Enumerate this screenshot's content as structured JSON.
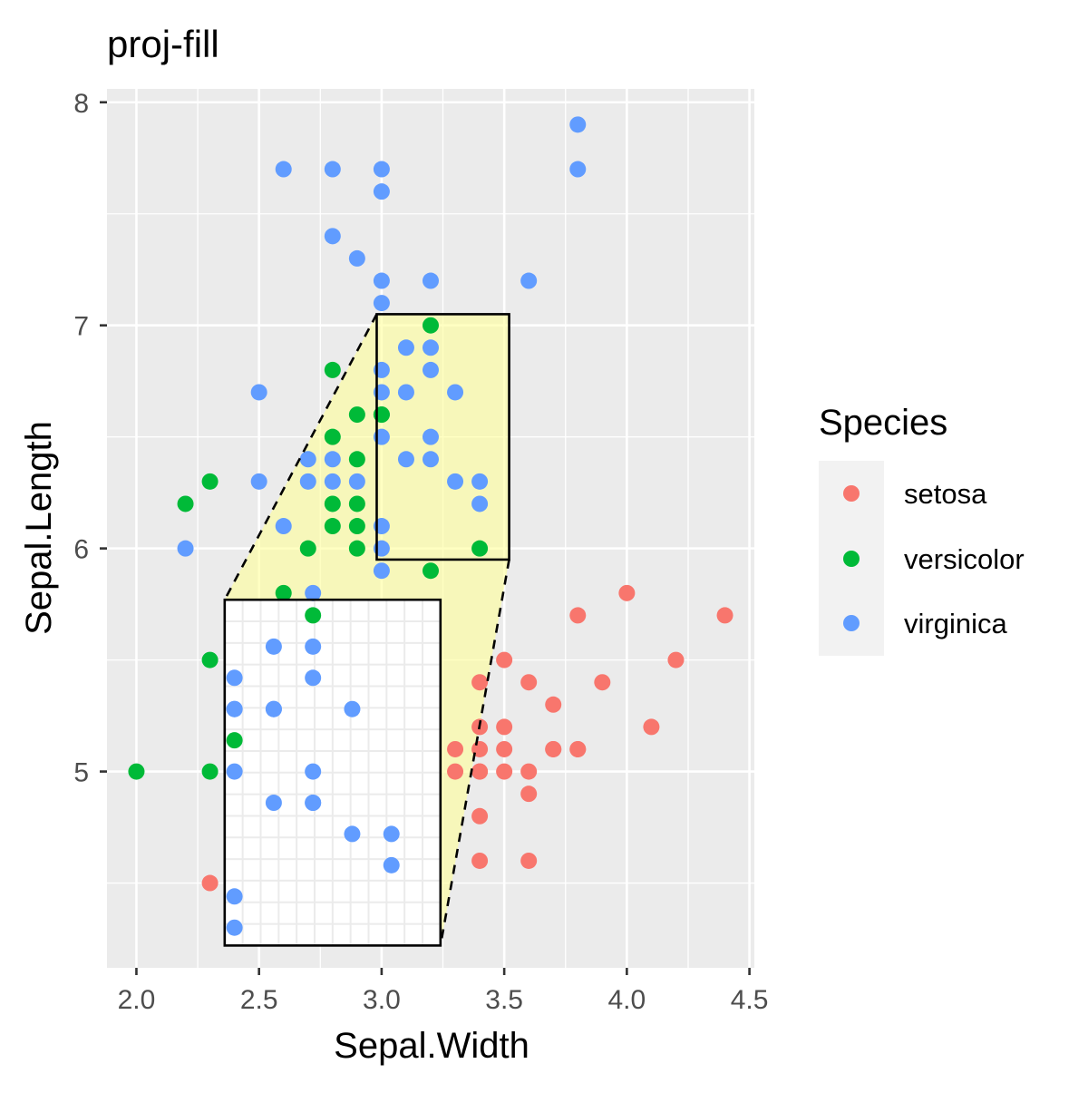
{
  "chart_data": {
    "type": "scatter",
    "title": "proj-fill",
    "xlabel": "Sepal.Width",
    "ylabel": "Sepal.Length",
    "xlim": [
      1.88,
      4.52
    ],
    "ylim": [
      4.12,
      8.06
    ],
    "x_ticks": [
      2.0,
      2.5,
      3.0,
      3.5,
      4.0,
      4.5
    ],
    "x_tick_labels": [
      "2.0",
      "2.5",
      "3.0",
      "3.5",
      "4.0",
      "4.5"
    ],
    "y_ticks": [
      5,
      6,
      7,
      8
    ],
    "y_tick_labels": [
      "5",
      "6",
      "7",
      "8"
    ],
    "grid": true,
    "legend": {
      "title": "Species",
      "position": "right"
    },
    "series": [
      {
        "name": "setosa",
        "color": "#F8766D",
        "x": [
          3.4,
          3.5,
          3.6,
          3.7,
          3.8,
          3.9,
          3.8,
          3.7,
          3.4,
          4.4,
          4.0,
          4.2,
          4.1,
          3.4,
          3.5,
          3.7,
          3.8,
          3.3,
          3.4,
          3.5,
          3.3,
          3.4,
          3.5,
          3.6,
          3.6,
          3.4,
          3.4,
          3.6,
          2.3
        ],
        "y": [
          5.4,
          5.5,
          5.4,
          5.3,
          5.1,
          5.4,
          5.7,
          5.1,
          5.2,
          5.7,
          5.8,
          5.5,
          5.2,
          5.1,
          5.2,
          5.1,
          5.1,
          5.1,
          5.0,
          5.1,
          5.0,
          5.0,
          5.0,
          5.0,
          4.9,
          4.8,
          4.6,
          4.6,
          4.5
        ]
      },
      {
        "name": "versicolor",
        "color": "#00BA38",
        "x": [
          2.0,
          2.2,
          2.3,
          2.3,
          2.3,
          2.6,
          2.7,
          2.7,
          2.8,
          2.8,
          2.9,
          2.9,
          2.9,
          2.9,
          3.0,
          3.0,
          3.2,
          3.2,
          3.4,
          2.8,
          2.8,
          2.9
        ],
        "y": [
          5.0,
          6.2,
          6.3,
          5.5,
          5.0,
          5.8,
          5.7,
          6.0,
          6.8,
          6.5,
          6.6,
          6.4,
          6.2,
          6.0,
          6.6,
          6.6,
          7.0,
          5.9,
          6.0,
          6.1,
          6.2,
          6.1
        ]
      },
      {
        "name": "virginica",
        "color": "#619CFF",
        "x": [
          3.8,
          3.8,
          2.6,
          2.8,
          3.0,
          3.0,
          2.8,
          2.9,
          3.0,
          3.2,
          3.6,
          3.0,
          3.1,
          3.2,
          3.0,
          3.2,
          2.5,
          3.0,
          3.1,
          3.3,
          3.0,
          3.2,
          3.1,
          3.2,
          2.7,
          2.8,
          2.5,
          2.7,
          2.8,
          2.9,
          3.3,
          3.4,
          3.4,
          2.2,
          2.6,
          3.0,
          3.0,
          3.0
        ],
        "y": [
          7.9,
          7.7,
          7.7,
          7.7,
          7.7,
          7.6,
          7.4,
          7.3,
          7.2,
          7.2,
          7.2,
          7.1,
          6.9,
          6.9,
          6.8,
          6.8,
          6.7,
          6.7,
          6.7,
          6.7,
          6.5,
          6.5,
          6.4,
          6.4,
          6.4,
          6.4,
          6.3,
          6.3,
          6.3,
          6.3,
          6.3,
          6.3,
          6.2,
          6.0,
          6.1,
          6.1,
          6.0,
          5.9
        ]
      }
    ],
    "source_window": {
      "x": [
        2.98,
        3.52
      ],
      "y": [
        5.95,
        7.05
      ]
    },
    "magnified_points": {
      "versicolor": {
        "x": [
          2.4,
          2.72
        ],
        "y": [
          5.14,
          5.7
        ]
      },
      "virginica": {
        "x": [
          2.4,
          2.4,
          2.4,
          2.4,
          2.4,
          2.4,
          2.56,
          2.56,
          2.56,
          2.56,
          2.72,
          2.72,
          2.72,
          2.72,
          2.72,
          2.88,
          2.88,
          3.04,
          3.04,
          2.72
        ],
        "y": [
          5.42,
          5.28,
          5.28,
          5.0,
          4.44,
          4.3,
          5.56,
          5.28,
          5.28,
          4.86,
          5.56,
          5.42,
          5.0,
          4.86,
          4.86,
          5.28,
          4.72,
          4.72,
          4.58,
          5.8
        ]
      },
      "zoom": {
        "x": [
          2.36,
          3.24
        ],
        "y": [
          4.22,
          5.77
        ]
      }
    }
  }
}
